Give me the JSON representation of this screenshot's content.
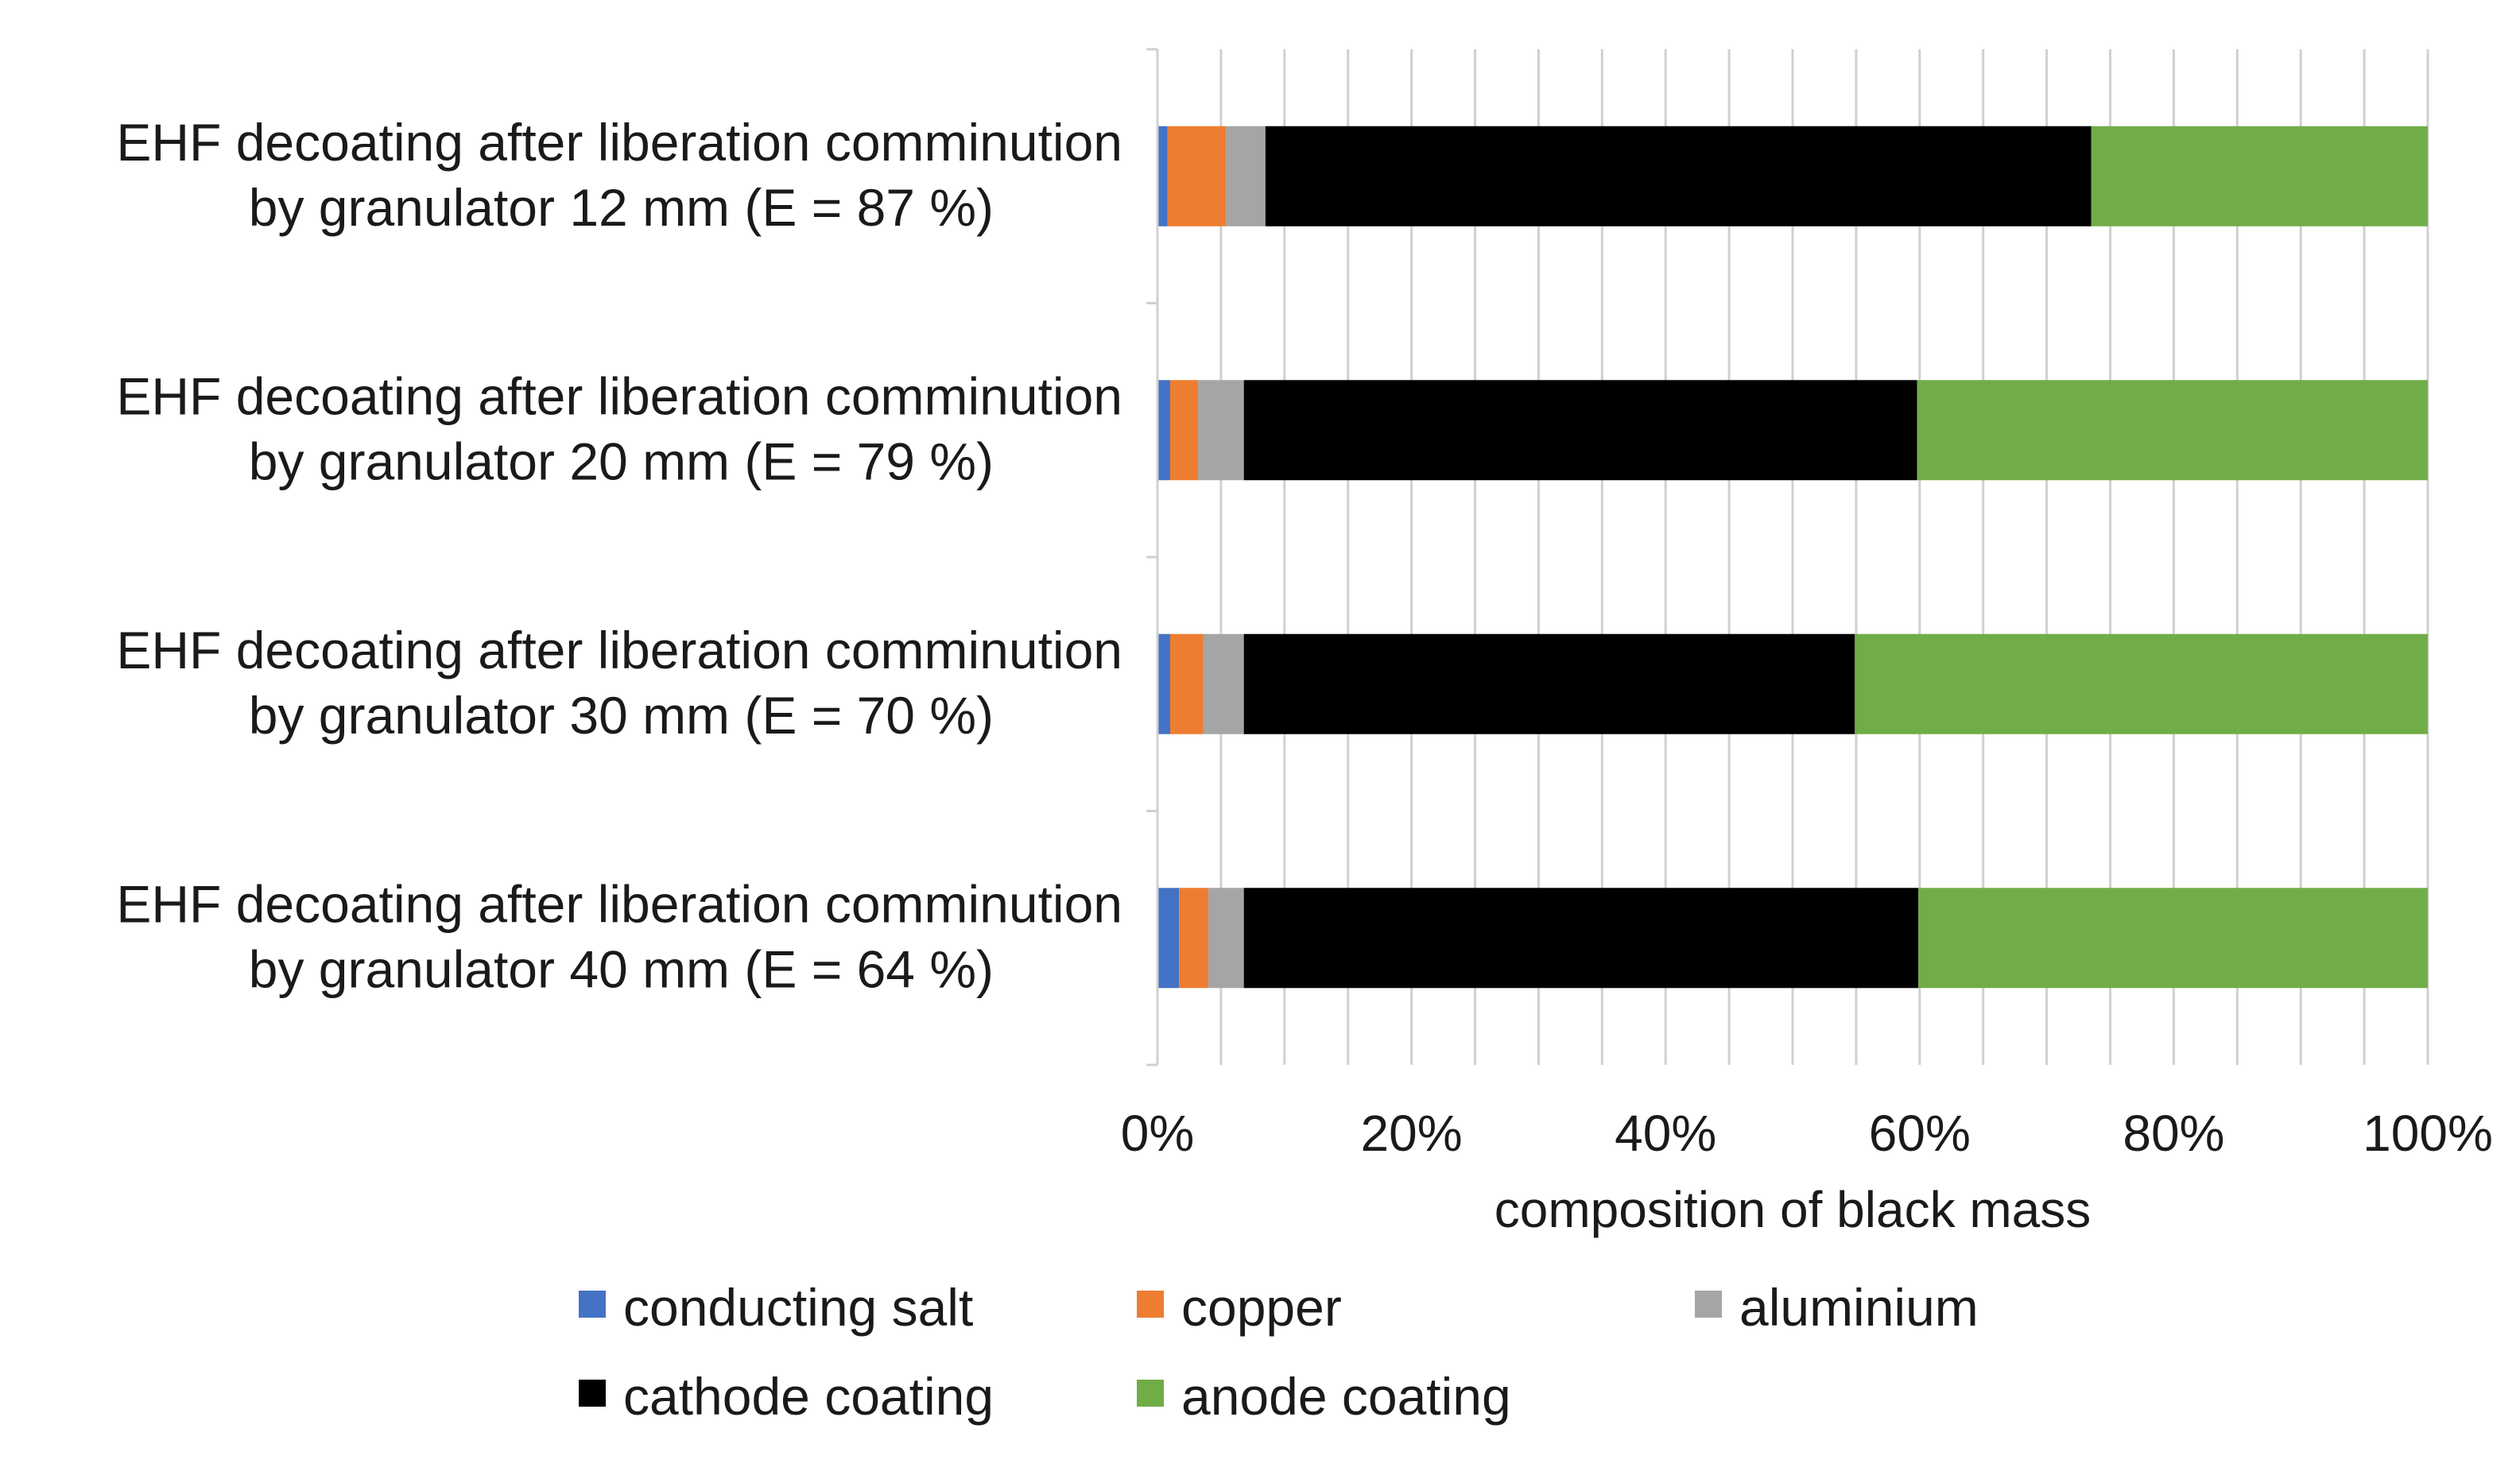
{
  "chart_data": {
    "type": "bar",
    "orientation": "horizontal",
    "stacked": "percent",
    "title": "",
    "xlabel": "composition of black mass",
    "ylabel": "",
    "xlim": [
      0,
      100
    ],
    "x_ticks": [
      "0%",
      "20%",
      "40%",
      "60%",
      "80%",
      "100%"
    ],
    "x_tick_values": [
      0,
      20,
      40,
      60,
      80,
      100
    ],
    "grid": true,
    "legend_position": "bottom",
    "categories": [
      {
        "line1": "EHF decoating after liberation comminution",
        "line2": "by granulator 12 mm  (E = 87 %)"
      },
      {
        "line1": "EHF decoating after liberation comminution",
        "line2": "by granulator 20 mm  (E = 79 %)"
      },
      {
        "line1": "EHF decoating after liberation comminution",
        "line2": "by granulator 30 mm  (E = 70 %)"
      },
      {
        "line1": "EHF decoating after liberation comminution",
        "line2": "by granulator 40 mm  (E = 64 %)"
      }
    ],
    "series": [
      {
        "name": "conducting salt",
        "color": "#4472c4",
        "values": [
          0.8,
          1.0,
          1.0,
          1.7
        ]
      },
      {
        "name": "copper",
        "color": "#ed7d31",
        "values": [
          4.6,
          2.2,
          2.6,
          2.3
        ]
      },
      {
        "name": "aluminium",
        "color": "#a5a5a5",
        "values": [
          3.1,
          3.6,
          3.2,
          2.8
        ]
      },
      {
        "name": "cathode coating",
        "color": "#000000",
        "values": [
          65.0,
          53.0,
          48.1,
          53.1
        ]
      },
      {
        "name": "anode coating",
        "color": "#70ad47",
        "values": [
          26.5,
          40.2,
          45.1,
          40.1
        ]
      }
    ]
  }
}
